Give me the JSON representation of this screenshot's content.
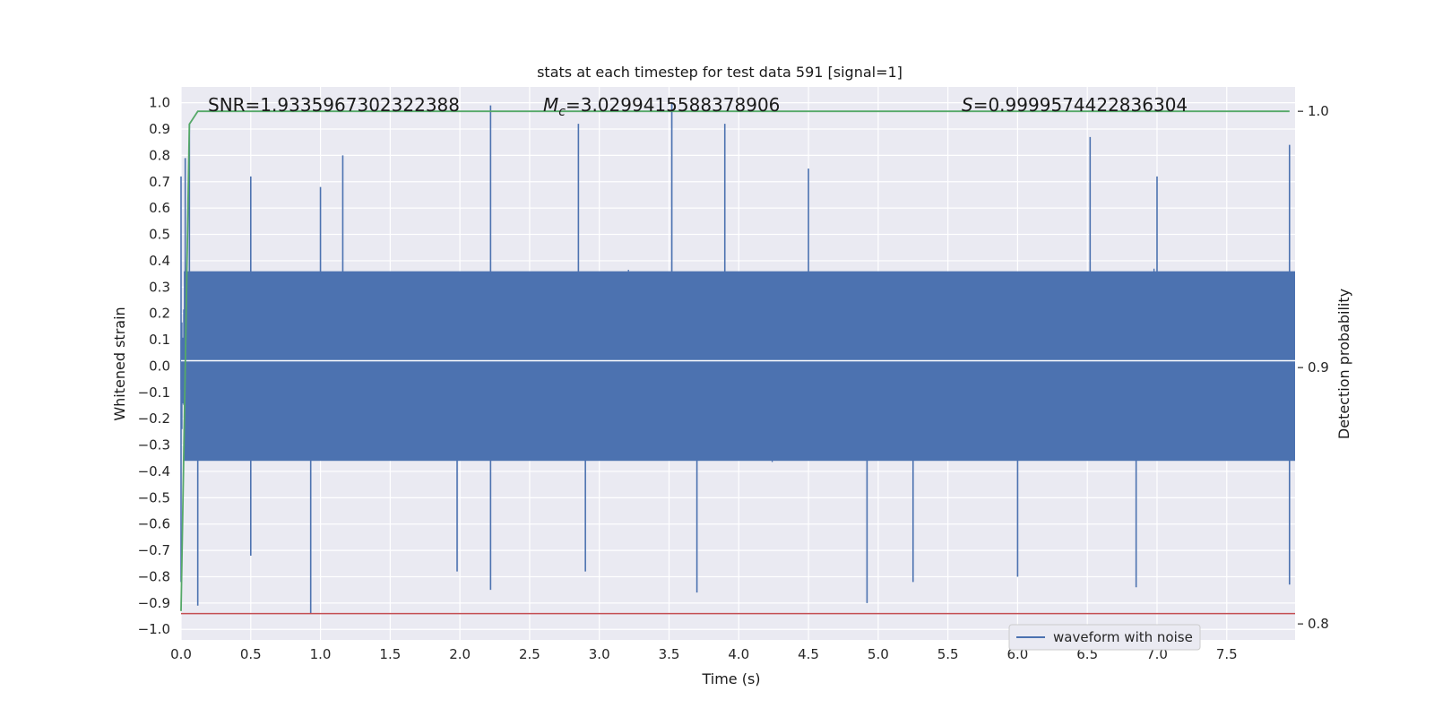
{
  "chart_data": {
    "type": "line",
    "title": "stats at each timestep for test data 591 [signal=1]",
    "xlabel": "Time (s)",
    "ylabel": "Whitened strain",
    "y2label": "Detection probability",
    "xlim": [
      0.0,
      7.99
    ],
    "ylim": [
      -1.04,
      1.06
    ],
    "y2lim": [
      0.79375,
      1.0095
    ],
    "xticks": [
      "0.0",
      "0.5",
      "1.0",
      "1.5",
      "2.0",
      "2.5",
      "3.0",
      "3.5",
      "4.0",
      "4.5",
      "5.0",
      "5.5",
      "6.0",
      "6.5",
      "7.0",
      "7.5"
    ],
    "xtick_values": [
      0.0,
      0.5,
      1.0,
      1.5,
      2.0,
      2.5,
      3.0,
      3.5,
      4.0,
      4.5,
      5.0,
      5.5,
      6.0,
      6.5,
      7.0,
      7.5
    ],
    "yticks": [
      "1.0",
      "0.9",
      "0.8",
      "0.7",
      "0.6",
      "0.5",
      "0.4",
      "0.3",
      "0.2",
      "0.1",
      "0.0",
      "−0.1",
      "−0.2",
      "−0.3",
      "−0.4",
      "−0.5",
      "−0.6",
      "−0.7",
      "−0.8",
      "−0.9",
      "−1.0"
    ],
    "ytick_values": [
      1.0,
      0.9,
      0.8,
      0.7,
      0.6,
      0.5,
      0.4,
      0.3,
      0.2,
      0.1,
      0.0,
      -0.1,
      -0.2,
      -0.3,
      -0.4,
      -0.5,
      -0.6,
      -0.7,
      -0.8,
      -0.9,
      -1.0
    ],
    "y2ticks": [
      "1.0",
      "0.9",
      "0.8"
    ],
    "y2tick_values": [
      1.0,
      0.9,
      0.8
    ],
    "grid": true,
    "stats": {
      "snr": "SNR=1.9335967302322388",
      "mc_prefix": "M",
      "mc_sub": "c",
      "mc_value": "=3.0299415588378906",
      "s_prefix": "S",
      "s_value": "=0.9999574422836304"
    },
    "series": [
      {
        "name": "waveform with noise",
        "color": "#4c72b0",
        "description": "dense noisy whitened strain, roughly symmetric about 0",
        "envelope_upper": [
          [
            0.0,
            0.72
          ],
          [
            0.03,
            0.79
          ],
          [
            0.06,
            0.92
          ],
          [
            0.5,
            0.72
          ],
          [
            1.0,
            0.68
          ],
          [
            1.16,
            0.8
          ],
          [
            2.22,
            0.99
          ],
          [
            2.85,
            0.92
          ],
          [
            3.52,
            1.0
          ],
          [
            3.9,
            0.92
          ],
          [
            4.5,
            0.75
          ],
          [
            6.52,
            0.87
          ],
          [
            7.0,
            0.72
          ],
          [
            7.95,
            0.84
          ]
        ],
        "envelope_lower": [
          [
            0.0,
            -0.82
          ],
          [
            0.12,
            -0.91
          ],
          [
            0.5,
            -0.72
          ],
          [
            0.93,
            -0.94
          ],
          [
            1.98,
            -0.78
          ],
          [
            2.22,
            -0.85
          ],
          [
            2.9,
            -0.78
          ],
          [
            3.7,
            -0.86
          ],
          [
            4.92,
            -0.9
          ],
          [
            5.25,
            -0.82
          ],
          [
            6.0,
            -0.8
          ],
          [
            6.85,
            -0.84
          ],
          [
            7.95,
            -0.83
          ]
        ],
        "typical_band": [
          -0.45,
          0.45
        ]
      },
      {
        "name": "detection probability",
        "color": "#55a868",
        "axis": "right",
        "x": [
          0.0,
          0.03,
          0.06,
          0.12,
          0.5,
          1.0,
          2.0,
          3.0,
          4.0,
          5.0,
          6.0,
          7.0,
          7.95
        ],
        "values": [
          0.805,
          0.9,
          0.995,
          1.0,
          1.0,
          1.0,
          1.0,
          1.0,
          1.0,
          1.0,
          1.0,
          1.0,
          1.0
        ]
      }
    ],
    "hlines": [
      {
        "y": 0.02,
        "color": "#ffffff",
        "axis": "left"
      },
      {
        "y": -0.94,
        "color": "#c44e52",
        "axis": "left"
      }
    ],
    "legend": {
      "location": "lower-right",
      "label": "waveform with noise",
      "color": "#4c72b0"
    }
  },
  "colors": {
    "axes_bg": "#eaeaf2",
    "grid": "#ffffff",
    "waveform": "#4c72b0",
    "probability": "#55a868",
    "threshold": "#c44e52"
  }
}
